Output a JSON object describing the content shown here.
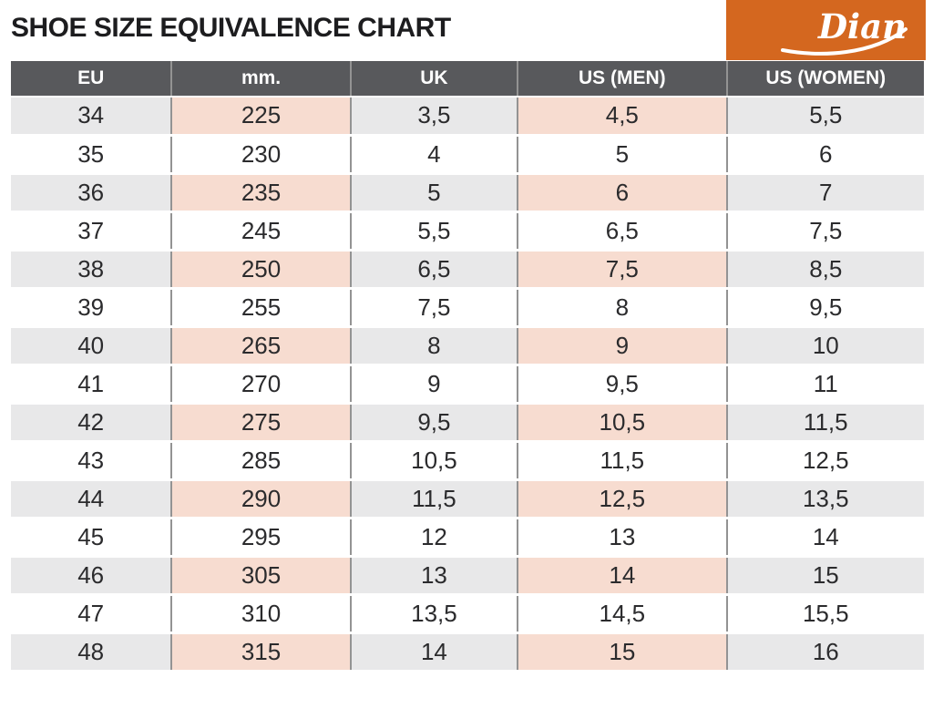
{
  "page": {
    "title": "SHOE SIZE EQUIVALENCE CHART"
  },
  "logo": {
    "text": "Dian",
    "background_color": "#D4671F",
    "text_color": "#FFFFFF"
  },
  "colors": {
    "header_background": "#58595C",
    "header_text": "#FFFFFF",
    "shaded_row_gray": "#E8E8E9",
    "shaded_row_pink": "#F7DCD0",
    "cell_text": "#2B2B2D",
    "column_divider": "#939393",
    "accent_orange": "#D4671F"
  },
  "chart_data": {
    "type": "table",
    "title": "SHOE SIZE EQUIVALENCE CHART",
    "columns": [
      "EU",
      "mm.",
      "UK",
      "US (MEN)",
      "US (WOMEN)"
    ],
    "column_keys": [
      "eu",
      "mm",
      "uk",
      "us_men",
      "us_women"
    ],
    "highlight_column_indexes": [
      1,
      3
    ],
    "shaded_row_pattern": "odd rows (1st, 3rd, ...) shaded; gray for EU/UK/US(WOMEN), pink for mm./US(MEN)",
    "rows": [
      [
        "34",
        "225",
        "3,5",
        "4,5",
        "5,5"
      ],
      [
        "35",
        "230",
        "4",
        "5",
        "6"
      ],
      [
        "36",
        "235",
        "5",
        "6",
        "7"
      ],
      [
        "37",
        "245",
        "5,5",
        "6,5",
        "7,5"
      ],
      [
        "38",
        "250",
        "6,5",
        "7,5",
        "8,5"
      ],
      [
        "39",
        "255",
        "7,5",
        "8",
        "9,5"
      ],
      [
        "40",
        "265",
        "8",
        "9",
        "10"
      ],
      [
        "41",
        "270",
        "9",
        "9,5",
        "11"
      ],
      [
        "42",
        "275",
        "9,5",
        "10,5",
        "11,5"
      ],
      [
        "43",
        "285",
        "10,5",
        "11,5",
        "12,5"
      ],
      [
        "44",
        "290",
        "11,5",
        "12,5",
        "13,5"
      ],
      [
        "45",
        "295",
        "12",
        "13",
        "14"
      ],
      [
        "46",
        "305",
        "13",
        "14",
        "15"
      ],
      [
        "47",
        "310",
        "13,5",
        "14,5",
        "15,5"
      ],
      [
        "48",
        "315",
        "14",
        "15",
        "16"
      ]
    ]
  }
}
